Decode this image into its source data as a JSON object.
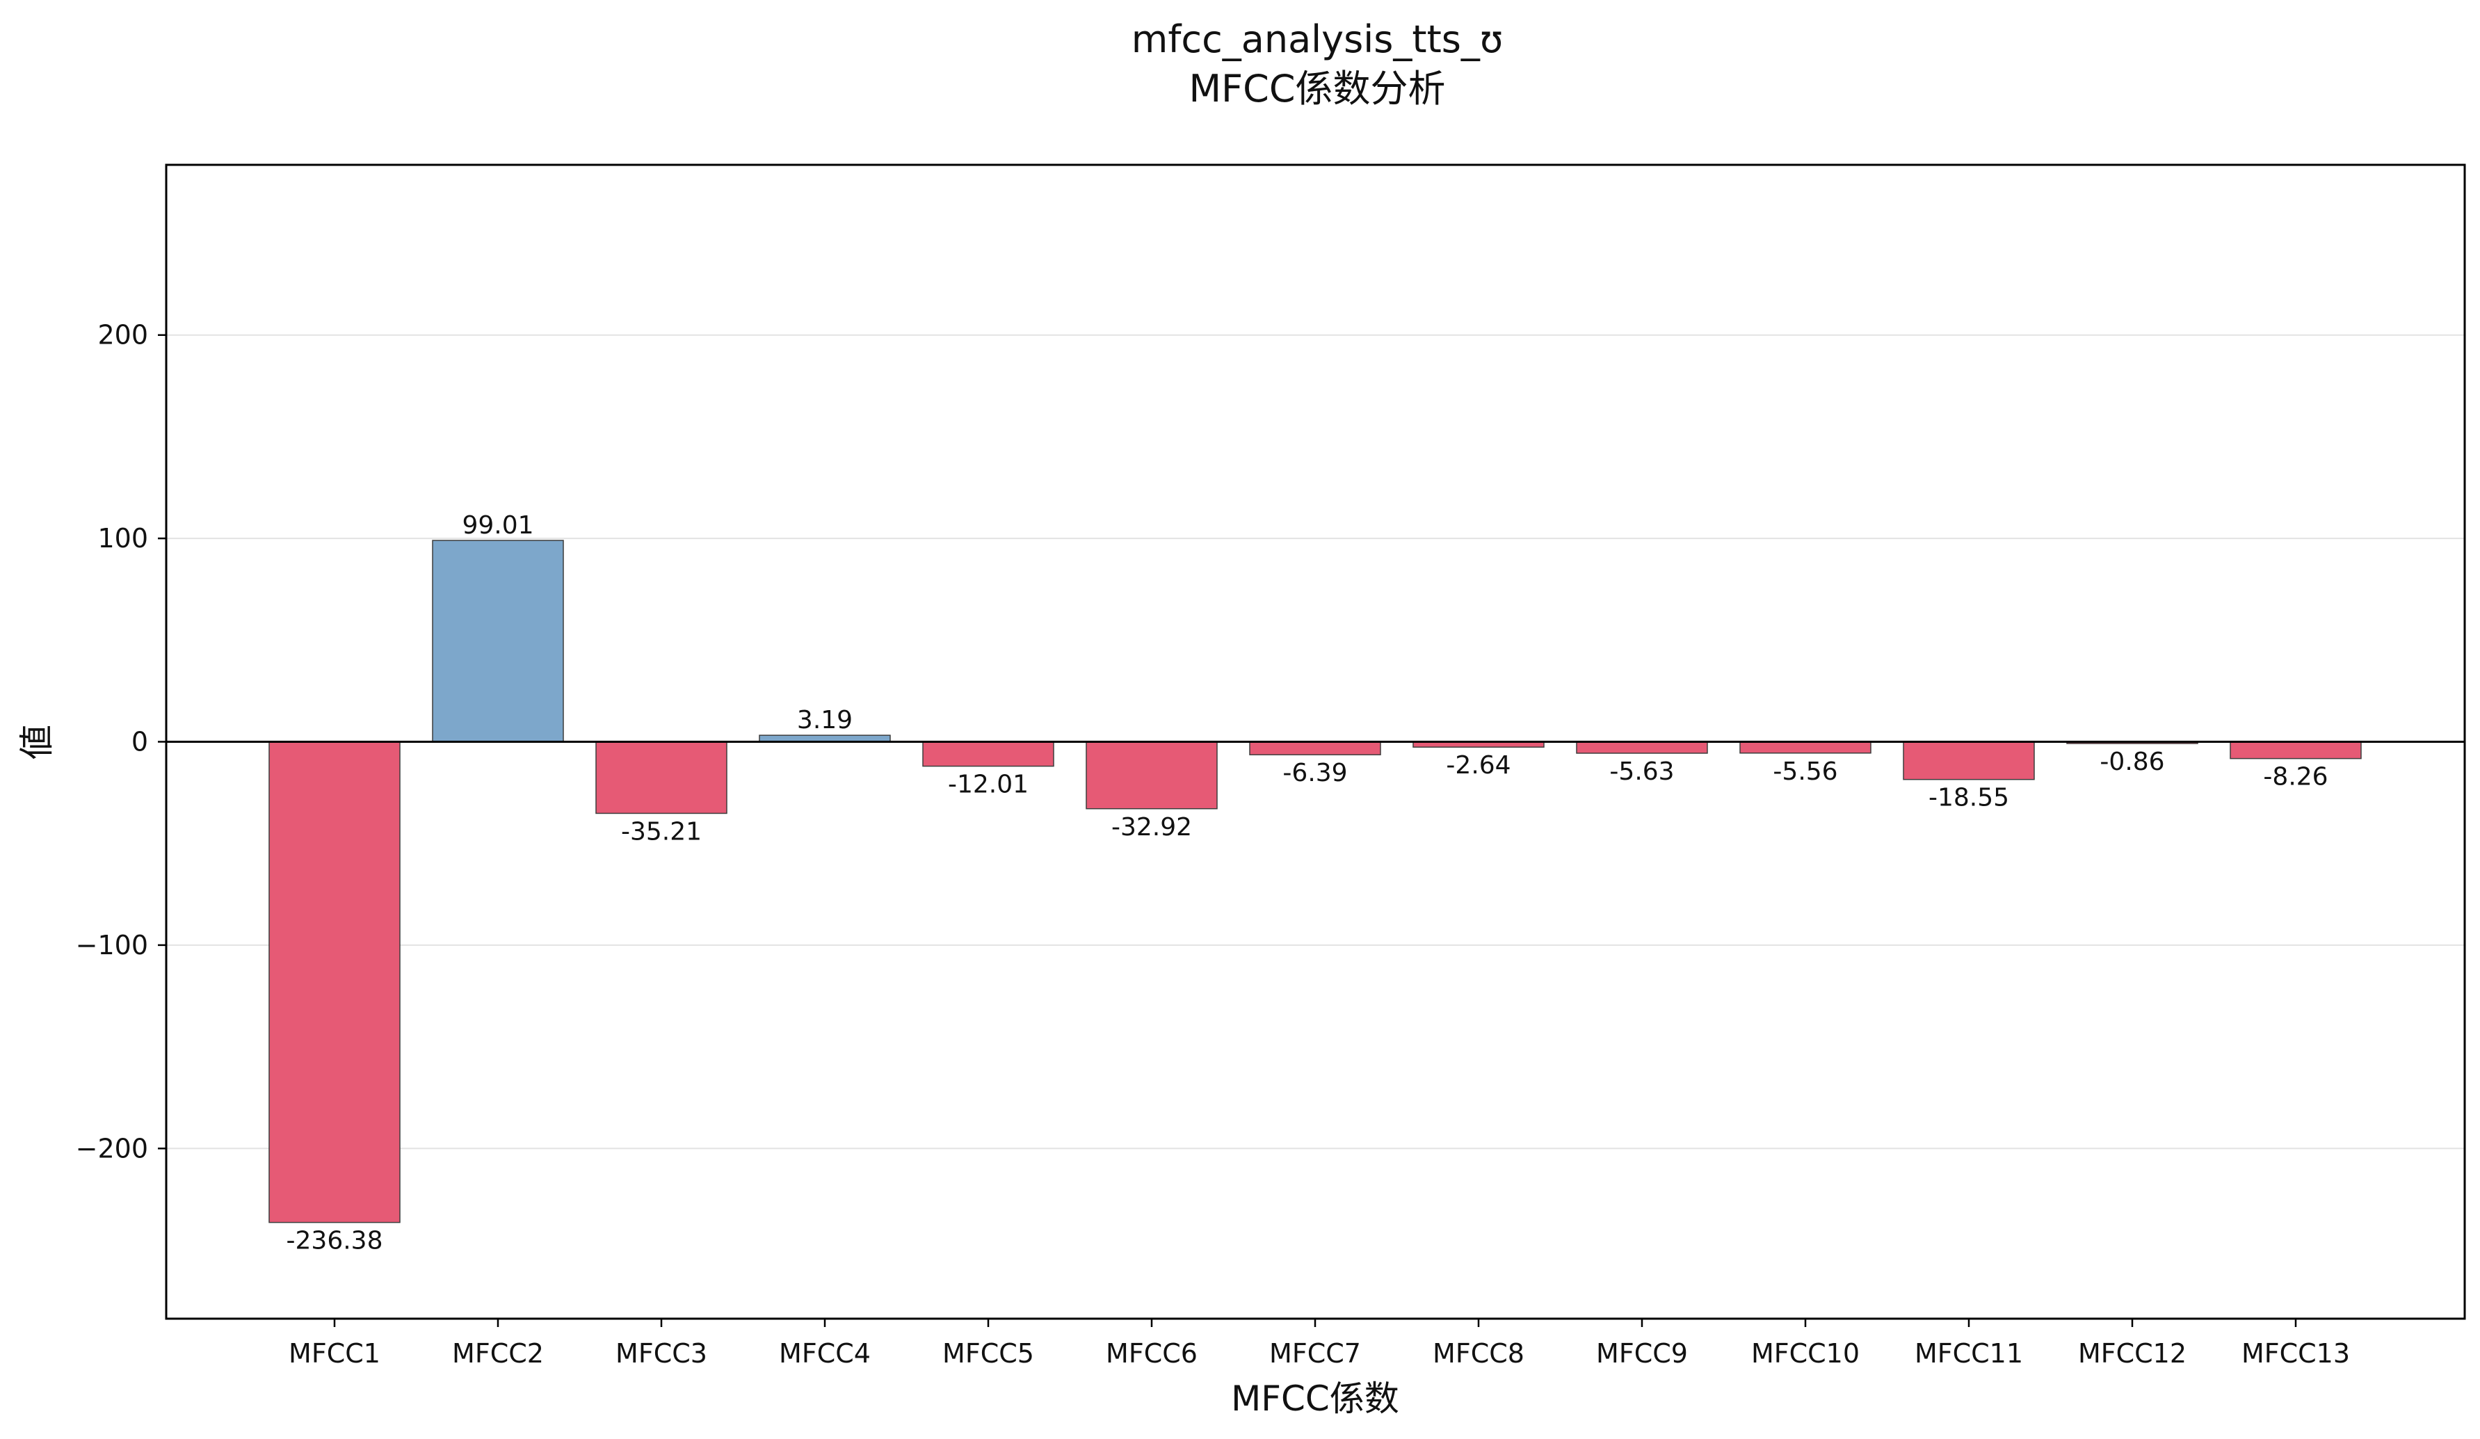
{
  "chart_data": {
    "type": "bar",
    "title": "mfcc_analysis_tts_ʊ",
    "subtitle": "MFCC係数分析",
    "xlabel": "MFCC係数",
    "ylabel": "値",
    "categories": [
      "MFCC1",
      "MFCC2",
      "MFCC3",
      "MFCC4",
      "MFCC5",
      "MFCC6",
      "MFCC7",
      "MFCC8",
      "MFCC9",
      "MFCC10",
      "MFCC11",
      "MFCC12",
      "MFCC13"
    ],
    "values": [
      -236.38,
      99.01,
      -35.21,
      3.19,
      -12.01,
      -32.92,
      -6.39,
      -2.64,
      -5.63,
      -5.56,
      -18.55,
      -0.86,
      -8.26
    ],
    "value_labels": [
      "-236.38",
      "99.01",
      "-35.21",
      "3.19",
      "-12.01",
      "-32.92",
      "-6.39",
      "-2.64",
      "-5.63",
      "-5.56",
      "-18.55",
      "-0.86",
      "-8.26"
    ],
    "ylim": [
      -283.7,
      283.7
    ],
    "yticks": [
      -200,
      -100,
      0,
      100,
      200
    ],
    "ytick_labels": [
      "−200",
      "−100",
      "0",
      "100",
      "200"
    ],
    "grid": "horizontal",
    "legend": "none",
    "colors": {
      "positive": "#7da7cb",
      "negative": "#e65a75",
      "edge": "#3d3d3d",
      "zero_line": "#000000",
      "grid": "#e3e3e3"
    }
  }
}
